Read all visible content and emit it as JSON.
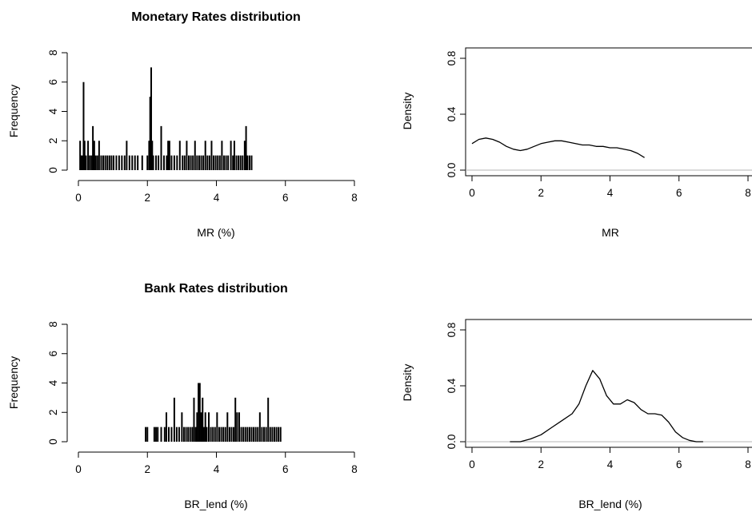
{
  "chart_data": [
    {
      "type": "histogram",
      "title": "Monetary Rates distribution",
      "xlabel": "MR (%)",
      "ylabel": "Frequency",
      "xlim": [
        0,
        8
      ],
      "ylim": [
        0,
        8
      ],
      "xticks": [
        "0",
        "2",
        "4",
        "6",
        "8"
      ],
      "yticks": [
        "0",
        "2",
        "4",
        "6",
        "8"
      ],
      "bars": [
        {
          "x": 0.05,
          "y": 2
        },
        {
          "x": 0.08,
          "y": 1
        },
        {
          "x": 0.12,
          "y": 1
        },
        {
          "x": 0.15,
          "y": 6
        },
        {
          "x": 0.18,
          "y": 2
        },
        {
          "x": 0.22,
          "y": 1
        },
        {
          "x": 0.28,
          "y": 2
        },
        {
          "x": 0.33,
          "y": 1
        },
        {
          "x": 0.38,
          "y": 1
        },
        {
          "x": 0.42,
          "y": 3
        },
        {
          "x": 0.46,
          "y": 2
        },
        {
          "x": 0.5,
          "y": 1
        },
        {
          "x": 0.55,
          "y": 1
        },
        {
          "x": 0.6,
          "y": 2
        },
        {
          "x": 0.66,
          "y": 1
        },
        {
          "x": 0.72,
          "y": 1
        },
        {
          "x": 0.78,
          "y": 1
        },
        {
          "x": 0.84,
          "y": 1
        },
        {
          "x": 0.9,
          "y": 1
        },
        {
          "x": 0.96,
          "y": 1
        },
        {
          "x": 1.02,
          "y": 1
        },
        {
          "x": 1.1,
          "y": 1
        },
        {
          "x": 1.18,
          "y": 1
        },
        {
          "x": 1.26,
          "y": 1
        },
        {
          "x": 1.34,
          "y": 1
        },
        {
          "x": 1.4,
          "y": 2
        },
        {
          "x": 1.48,
          "y": 1
        },
        {
          "x": 1.56,
          "y": 1
        },
        {
          "x": 1.64,
          "y": 1
        },
        {
          "x": 1.72,
          "y": 1
        },
        {
          "x": 1.85,
          "y": 1
        },
        {
          "x": 2.0,
          "y": 1
        },
        {
          "x": 2.05,
          "y": 2
        },
        {
          "x": 2.08,
          "y": 5
        },
        {
          "x": 2.11,
          "y": 7
        },
        {
          "x": 2.14,
          "y": 2
        },
        {
          "x": 2.17,
          "y": 1
        },
        {
          "x": 2.25,
          "y": 1
        },
        {
          "x": 2.32,
          "y": 1
        },
        {
          "x": 2.4,
          "y": 3
        },
        {
          "x": 2.48,
          "y": 1
        },
        {
          "x": 2.56,
          "y": 1
        },
        {
          "x": 2.6,
          "y": 2
        },
        {
          "x": 2.64,
          "y": 2
        },
        {
          "x": 2.7,
          "y": 1
        },
        {
          "x": 2.78,
          "y": 1
        },
        {
          "x": 2.86,
          "y": 1
        },
        {
          "x": 2.94,
          "y": 2
        },
        {
          "x": 3.02,
          "y": 1
        },
        {
          "x": 3.08,
          "y": 1
        },
        {
          "x": 3.14,
          "y": 2
        },
        {
          "x": 3.2,
          "y": 1
        },
        {
          "x": 3.26,
          "y": 1
        },
        {
          "x": 3.32,
          "y": 1
        },
        {
          "x": 3.38,
          "y": 2
        },
        {
          "x": 3.44,
          "y": 1
        },
        {
          "x": 3.5,
          "y": 1
        },
        {
          "x": 3.56,
          "y": 1
        },
        {
          "x": 3.62,
          "y": 1
        },
        {
          "x": 3.68,
          "y": 2
        },
        {
          "x": 3.74,
          "y": 1
        },
        {
          "x": 3.8,
          "y": 1
        },
        {
          "x": 3.86,
          "y": 2
        },
        {
          "x": 3.92,
          "y": 1
        },
        {
          "x": 3.98,
          "y": 1
        },
        {
          "x": 4.04,
          "y": 1
        },
        {
          "x": 4.1,
          "y": 1
        },
        {
          "x": 4.16,
          "y": 2
        },
        {
          "x": 4.22,
          "y": 1
        },
        {
          "x": 4.28,
          "y": 1
        },
        {
          "x": 4.34,
          "y": 1
        },
        {
          "x": 4.42,
          "y": 2
        },
        {
          "x": 4.48,
          "y": 1
        },
        {
          "x": 4.52,
          "y": 2
        },
        {
          "x": 4.58,
          "y": 1
        },
        {
          "x": 4.64,
          "y": 1
        },
        {
          "x": 4.7,
          "y": 1
        },
        {
          "x": 4.76,
          "y": 1
        },
        {
          "x": 4.82,
          "y": 2
        },
        {
          "x": 4.86,
          "y": 3
        },
        {
          "x": 4.9,
          "y": 1
        },
        {
          "x": 4.96,
          "y": 1
        },
        {
          "x": 5.02,
          "y": 1
        }
      ]
    },
    {
      "type": "line",
      "title": "",
      "xlabel": "MR",
      "ylabel": "Density",
      "xlim": [
        0,
        8
      ],
      "ylim": [
        0,
        1
      ],
      "xticks": [
        "0",
        "2",
        "4",
        "6",
        "8"
      ],
      "yticks": [
        "0.0",
        "0.4",
        "0.8"
      ],
      "reference_line_y": 0,
      "x": [
        0,
        0.2,
        0.4,
        0.6,
        0.8,
        1.0,
        1.2,
        1.4,
        1.6,
        1.8,
        2.0,
        2.2,
        2.4,
        2.6,
        2.8,
        3.0,
        3.2,
        3.4,
        3.6,
        3.8,
        4.0,
        4.2,
        4.4,
        4.6,
        4.8,
        5.0
      ],
      "y": [
        0.19,
        0.22,
        0.23,
        0.22,
        0.2,
        0.17,
        0.15,
        0.14,
        0.15,
        0.17,
        0.19,
        0.2,
        0.21,
        0.21,
        0.2,
        0.19,
        0.18,
        0.18,
        0.17,
        0.17,
        0.16,
        0.16,
        0.15,
        0.14,
        0.12,
        0.09
      ]
    },
    {
      "type": "histogram",
      "title": "Bank Rates distribution",
      "xlabel": "BR_lend (%)",
      "ylabel": "Frequency",
      "xlim": [
        0,
        8
      ],
      "ylim": [
        0,
        8
      ],
      "xticks": [
        "0",
        "2",
        "4",
        "6",
        "8"
      ],
      "yticks": [
        "0",
        "2",
        "4",
        "6",
        "8"
      ],
      "bars": [
        {
          "x": 1.95,
          "y": 1
        },
        {
          "x": 2.0,
          "y": 1
        },
        {
          "x": 2.2,
          "y": 1
        },
        {
          "x": 2.25,
          "y": 1
        },
        {
          "x": 2.3,
          "y": 1
        },
        {
          "x": 2.4,
          "y": 1
        },
        {
          "x": 2.5,
          "y": 1
        },
        {
          "x": 2.55,
          "y": 2
        },
        {
          "x": 2.62,
          "y": 1
        },
        {
          "x": 2.7,
          "y": 1
        },
        {
          "x": 2.78,
          "y": 3
        },
        {
          "x": 2.85,
          "y": 1
        },
        {
          "x": 2.92,
          "y": 1
        },
        {
          "x": 3.0,
          "y": 2
        },
        {
          "x": 3.06,
          "y": 1
        },
        {
          "x": 3.12,
          "y": 1
        },
        {
          "x": 3.18,
          "y": 1
        },
        {
          "x": 3.24,
          "y": 1
        },
        {
          "x": 3.3,
          "y": 1
        },
        {
          "x": 3.35,
          "y": 3
        },
        {
          "x": 3.4,
          "y": 1
        },
        {
          "x": 3.44,
          "y": 2
        },
        {
          "x": 3.48,
          "y": 4
        },
        {
          "x": 3.52,
          "y": 4
        },
        {
          "x": 3.56,
          "y": 2
        },
        {
          "x": 3.6,
          "y": 3
        },
        {
          "x": 3.64,
          "y": 1
        },
        {
          "x": 3.68,
          "y": 2
        },
        {
          "x": 3.72,
          "y": 1
        },
        {
          "x": 3.78,
          "y": 2
        },
        {
          "x": 3.84,
          "y": 1
        },
        {
          "x": 3.9,
          "y": 1
        },
        {
          "x": 3.96,
          "y": 1
        },
        {
          "x": 4.02,
          "y": 2
        },
        {
          "x": 4.08,
          "y": 1
        },
        {
          "x": 4.14,
          "y": 1
        },
        {
          "x": 4.2,
          "y": 1
        },
        {
          "x": 4.26,
          "y": 1
        },
        {
          "x": 4.32,
          "y": 2
        },
        {
          "x": 4.38,
          "y": 1
        },
        {
          "x": 4.44,
          "y": 1
        },
        {
          "x": 4.5,
          "y": 1
        },
        {
          "x": 4.55,
          "y": 3
        },
        {
          "x": 4.6,
          "y": 2
        },
        {
          "x": 4.66,
          "y": 2
        },
        {
          "x": 4.72,
          "y": 1
        },
        {
          "x": 4.78,
          "y": 1
        },
        {
          "x": 4.84,
          "y": 1
        },
        {
          "x": 4.9,
          "y": 1
        },
        {
          "x": 4.96,
          "y": 1
        },
        {
          "x": 5.02,
          "y": 1
        },
        {
          "x": 5.08,
          "y": 1
        },
        {
          "x": 5.14,
          "y": 1
        },
        {
          "x": 5.2,
          "y": 1
        },
        {
          "x": 5.26,
          "y": 2
        },
        {
          "x": 5.32,
          "y": 1
        },
        {
          "x": 5.38,
          "y": 1
        },
        {
          "x": 5.44,
          "y": 1
        },
        {
          "x": 5.5,
          "y": 3
        },
        {
          "x": 5.56,
          "y": 1
        },
        {
          "x": 5.62,
          "y": 1
        },
        {
          "x": 5.68,
          "y": 1
        },
        {
          "x": 5.74,
          "y": 1
        },
        {
          "x": 5.8,
          "y": 1
        },
        {
          "x": 5.86,
          "y": 1
        }
      ]
    },
    {
      "type": "line",
      "title": "",
      "xlabel": "BR_lend (%)",
      "ylabel": "Density",
      "xlim": [
        0,
        8
      ],
      "ylim": [
        0,
        1
      ],
      "xticks": [
        "0",
        "2",
        "4",
        "6",
        "8"
      ],
      "yticks": [
        "0.0",
        "0.4",
        "0.8"
      ],
      "reference_line_y": 0,
      "x": [
        1.1,
        1.4,
        1.7,
        2.0,
        2.3,
        2.6,
        2.9,
        3.1,
        3.3,
        3.5,
        3.7,
        3.9,
        4.1,
        4.3,
        4.5,
        4.7,
        4.9,
        5.1,
        5.3,
        5.5,
        5.7,
        5.9,
        6.1,
        6.3,
        6.5,
        6.7
      ],
      "y": [
        0.0,
        0.0,
        0.02,
        0.05,
        0.1,
        0.15,
        0.2,
        0.27,
        0.4,
        0.51,
        0.45,
        0.33,
        0.27,
        0.27,
        0.3,
        0.28,
        0.23,
        0.2,
        0.2,
        0.19,
        0.14,
        0.07,
        0.03,
        0.01,
        0.0,
        0.0
      ]
    }
  ]
}
